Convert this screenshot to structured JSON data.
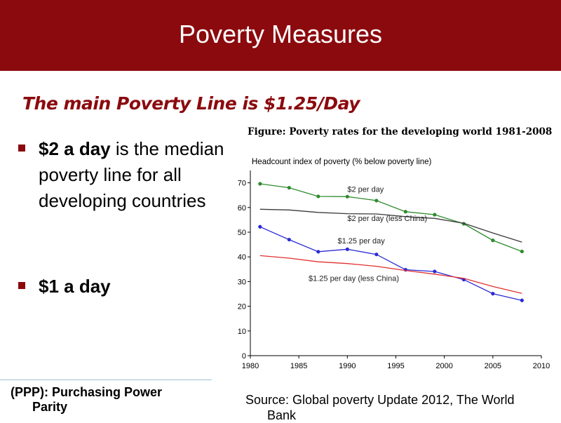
{
  "slide": {
    "title": "Poverty Measures",
    "subtitle": "The main Poverty Line is $1.25/Day",
    "bullets": [
      {
        "bold": "$2 a day",
        "rest": " is the median poverty line for all developing countries"
      },
      {
        "bold": "$1 a day",
        "rest": ""
      }
    ],
    "ppp_note": [
      "(PPP): Purchasing Power",
      "Parity"
    ],
    "source": [
      "Source: Global poverty Update 2012, The World",
      "Bank"
    ],
    "colors": {
      "title_bar": "#8b0a0e",
      "accent": "#8b0a0e"
    }
  },
  "chart_data": {
    "type": "line",
    "title": "Figure: Poverty rates for the developing world 1981-2008",
    "ylabel": "Headcount index of poverty (% below poverty line)",
    "xlim": [
      1980,
      2010
    ],
    "ylim": [
      0,
      75
    ],
    "x_ticks": [
      1980,
      1985,
      1990,
      1995,
      2000,
      2005,
      2010
    ],
    "y_ticks": [
      0,
      10,
      20,
      30,
      40,
      50,
      60,
      70
    ],
    "grid": false,
    "x": [
      1981,
      1984,
      1987,
      1990,
      1993,
      1996,
      1999,
      2002,
      2005,
      2008
    ],
    "series": [
      {
        "name": "$2 per day",
        "color": "#2e8b2e",
        "markers": true,
        "values": [
          69.6,
          68.0,
          64.5,
          64.4,
          62.8,
          58.3,
          57.1,
          53.4,
          46.7,
          42.2
        ]
      },
      {
        "name": "$2 per day (less China)",
        "color": "#3a3a3a",
        "markers": false,
        "values": [
          59.3,
          59.0,
          58.0,
          57.5,
          57.4,
          56.3,
          55.6,
          53.6,
          49.7,
          46.0
        ]
      },
      {
        "name": "$1.25 per day",
        "color": "#2b2bd6",
        "markers": true,
        "values": [
          52.2,
          47.0,
          42.1,
          43.1,
          41.0,
          34.8,
          34.1,
          30.8,
          25.1,
          22.4
        ]
      },
      {
        "name": "$1.25 per day (less China)",
        "color": "#e03030",
        "markers": false,
        "values": [
          40.5,
          39.5,
          38.0,
          37.3,
          36.2,
          34.5,
          33.0,
          31.3,
          28.0,
          25.2
        ]
      }
    ]
  }
}
